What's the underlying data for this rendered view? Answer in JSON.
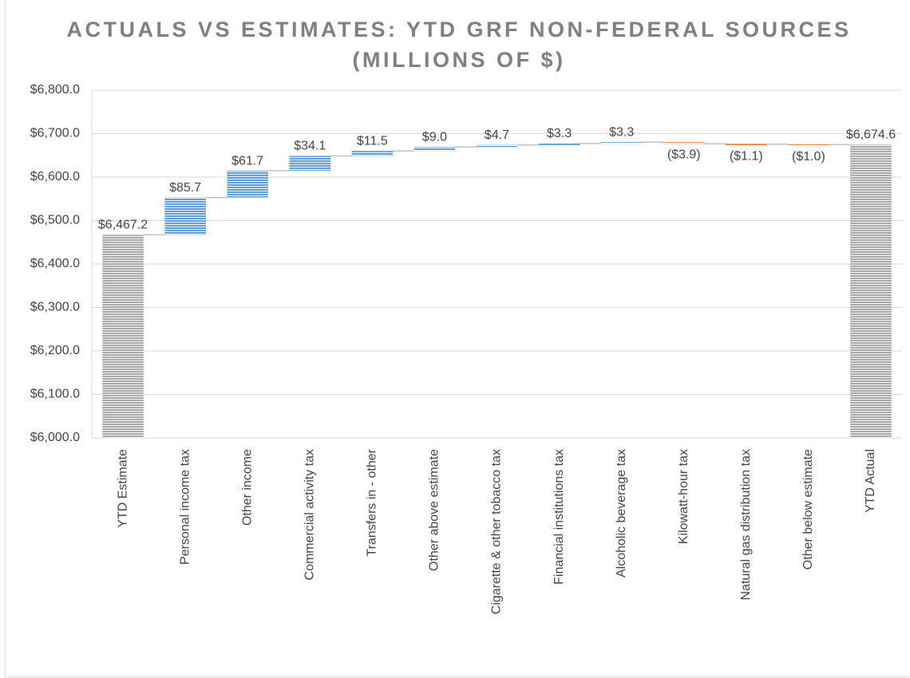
{
  "chart_data": {
    "type": "waterfall",
    "title": "ACTUALS VS ESTIMATES: YTD GRF NON-FEDERAL SOURCES (MILLIONS OF $)",
    "categories": [
      "YTD Estimate",
      "Personal income tax",
      "Other income",
      "Commercial activity tax",
      "Transfers in - other",
      "Other above estimate",
      "Cigarette & other tobacco tax",
      "Financial institutions tax",
      "Alcoholic beverage tax",
      "Kilowatt-hour tax",
      "Natural gas distribution tax",
      "Other below estimate",
      "YTD Actual"
    ],
    "values": [
      6467.2,
      85.7,
      61.7,
      34.1,
      11.5,
      9.0,
      4.7,
      3.3,
      3.3,
      -3.9,
      -1.1,
      -1.0,
      6674.6
    ],
    "value_labels": [
      "$6,467.2",
      "$85.7",
      "$61.7",
      "$34.1",
      "$11.5",
      "$9.0",
      "$4.7",
      "$3.3",
      "$3.3",
      "($3.9)",
      "($1.1)",
      "($1.0)",
      "$6,674.6"
    ],
    "measure": [
      "total",
      "relative",
      "relative",
      "relative",
      "relative",
      "relative",
      "relative",
      "relative",
      "relative",
      "relative",
      "relative",
      "relative",
      "total"
    ],
    "colors": {
      "increase": "#5b9bd5",
      "decrease": "#ed7d31",
      "total": "#a5a5a5"
    },
    "ylim": [
      6000,
      6800
    ],
    "yticks": [
      {
        "value": 6000,
        "label": "$6,000.0"
      },
      {
        "value": 6100,
        "label": "$6,100.0"
      },
      {
        "value": 6200,
        "label": "$6,200.0"
      },
      {
        "value": 6300,
        "label": "$6,300.0"
      },
      {
        "value": 6400,
        "label": "$6,400.0"
      },
      {
        "value": 6500,
        "label": "$6,500.0"
      },
      {
        "value": 6600,
        "label": "$6,600.0"
      },
      {
        "value": 6700,
        "label": "$6,700.0"
      },
      {
        "value": 6800,
        "label": "$6,800.0"
      }
    ],
    "grid": true
  }
}
